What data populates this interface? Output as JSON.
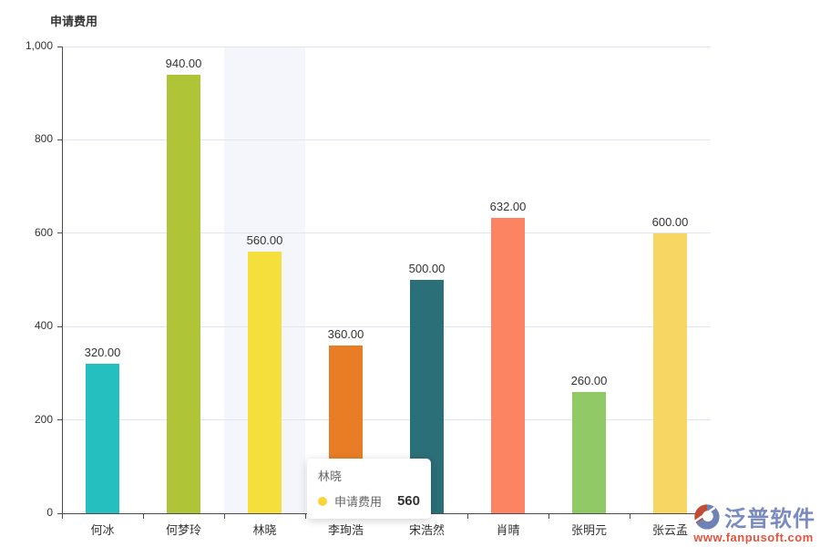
{
  "chart_data": {
    "type": "bar",
    "title": "申请费用",
    "categories": [
      "何冰",
      "何梦玲",
      "林晓",
      "李珣浩",
      "宋浩然",
      "肖晴",
      "张明元",
      "张云孟"
    ],
    "series": [
      {
        "name": "申请费用",
        "values": [
          320,
          940,
          560,
          360,
          500,
          632,
          260,
          600
        ],
        "value_labels": [
          "320.00",
          "940.00",
          "560.00",
          "360.00",
          "500.00",
          "632.00",
          "260.00",
          "600.00"
        ]
      }
    ],
    "bar_colors": [
      "#26BFBF",
      "#AFC437",
      "#F5DF3C",
      "#E87D26",
      "#2B6F79",
      "#FC8462",
      "#90C966",
      "#F8D664"
    ],
    "ylim": [
      0,
      1000
    ],
    "yticks": [
      {
        "value": 0,
        "label": "0"
      },
      {
        "value": 200,
        "label": "200"
      },
      {
        "value": 400,
        "label": "400"
      },
      {
        "value": 600,
        "label": "600"
      },
      {
        "value": 800,
        "label": "800"
      },
      {
        "value": 1000,
        "label": "1,000"
      }
    ],
    "grid": true,
    "legend_position": "none",
    "highlighted_category": "林晓"
  },
  "tooltip": {
    "title": "林晓",
    "series": "申请费用",
    "value": "560",
    "dot_color": "#FBD437"
  },
  "watermark": {
    "name": "泛普软件",
    "url": "www.fanpusoft.com",
    "name_color": "#7B8ABF",
    "url_color": "#E2543B"
  },
  "colors": {
    "grid": "#E0E6F1",
    "axis": "#4D4D4D",
    "hover_band": "#F4F6FB",
    "text": "#333333"
  }
}
